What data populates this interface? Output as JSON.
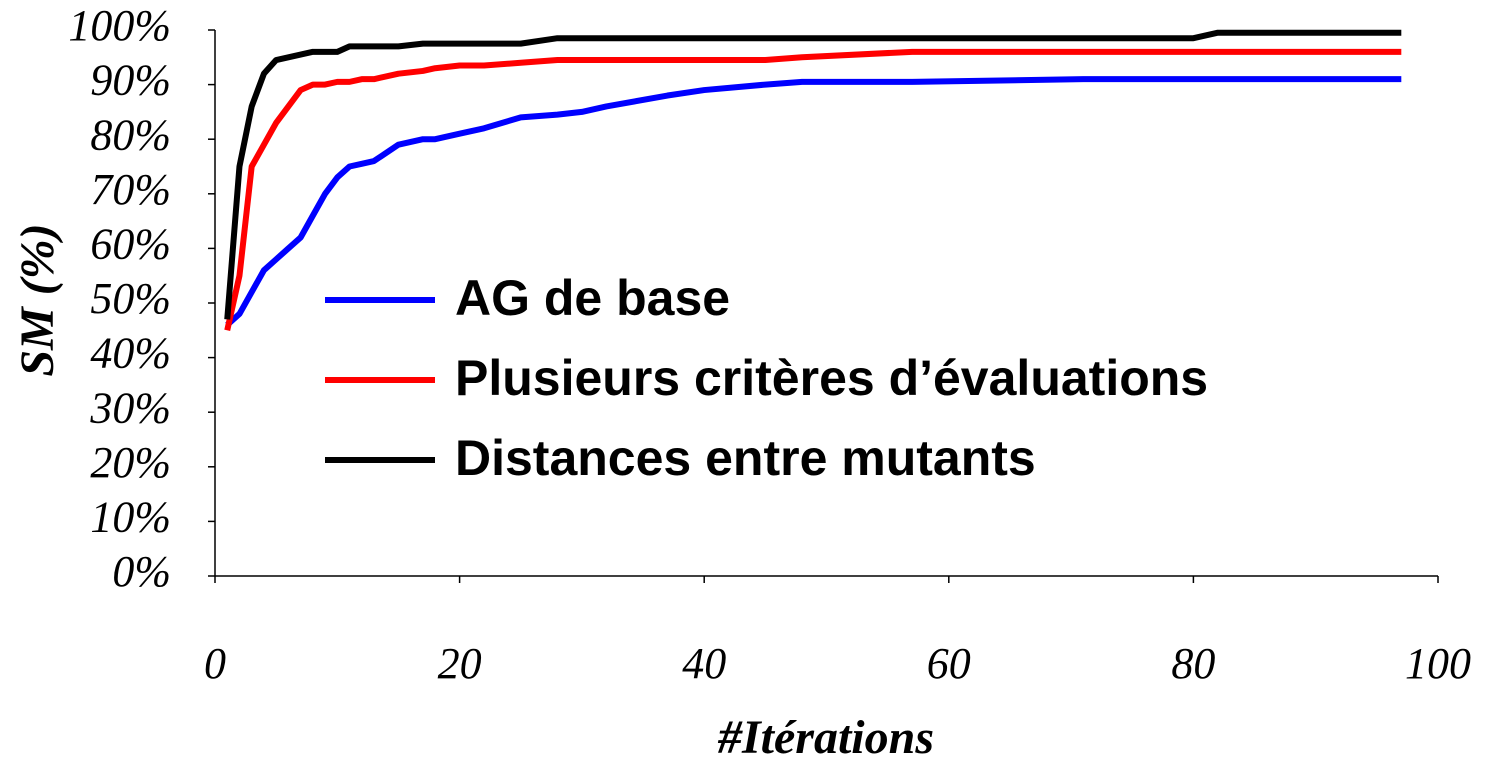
{
  "chart_data": {
    "type": "line",
    "x_label": "#Itérations",
    "y_label": "SM (%)",
    "x": [
      1,
      2,
      3,
      4,
      5,
      6,
      7,
      8,
      9,
      10,
      11,
      12,
      13,
      15,
      17,
      18,
      20,
      22,
      25,
      28,
      30,
      32,
      37,
      40,
      45,
      48,
      57,
      71,
      80,
      82,
      97
    ],
    "series": [
      {
        "name": "AG de base",
        "color": "#0000ff",
        "values": [
          46,
          48,
          52,
          56,
          58,
          60,
          62,
          66,
          70,
          73,
          75,
          75.5,
          76,
          79,
          80,
          80,
          81,
          82,
          84,
          84.5,
          85,
          86,
          88,
          89,
          90,
          90.5,
          90.5,
          91,
          91,
          91,
          91
        ]
      },
      {
        "name": "Plusieurs critères d’évaluations",
        "color": "#ff0000",
        "values": [
          45,
          55,
          75,
          79,
          83,
          86,
          89,
          90,
          90,
          90.5,
          90.5,
          91,
          91,
          92,
          92.5,
          93,
          93.5,
          93.5,
          94,
          94.5,
          94.5,
          94.5,
          94.5,
          94.5,
          94.5,
          95,
          96,
          96,
          96,
          96,
          96
        ]
      },
      {
        "name": "Distances entre mutants",
        "color": "#000000",
        "values": [
          47,
          75,
          86,
          92,
          94.5,
          95,
          95.5,
          96,
          96,
          96,
          97,
          97,
          97,
          97,
          97.5,
          97.5,
          97.5,
          97.5,
          97.5,
          98.5,
          98.5,
          98.5,
          98.5,
          98.5,
          98.5,
          98.5,
          98.5,
          98.5,
          98.5,
          99.5,
          99.5
        ]
      }
    ],
    "xlim": [
      0,
      100
    ],
    "xticks": [
      0,
      20,
      40,
      60,
      80,
      100
    ],
    "ylim": [
      0,
      100
    ],
    "yticks": [
      {
        "value": 0,
        "label": "0%"
      },
      {
        "value": 10,
        "label": "10%"
      },
      {
        "value": 20,
        "label": "20%"
      },
      {
        "value": 30,
        "label": "30%"
      },
      {
        "value": 40,
        "label": "40%"
      },
      {
        "value": 50,
        "label": "50%"
      },
      {
        "value": 60,
        "label": "60%"
      },
      {
        "value": 70,
        "label": "70%"
      },
      {
        "value": 80,
        "label": "80%"
      },
      {
        "value": 90,
        "label": "90%"
      },
      {
        "value": 100,
        "label": "100%"
      }
    ],
    "grid": false
  }
}
